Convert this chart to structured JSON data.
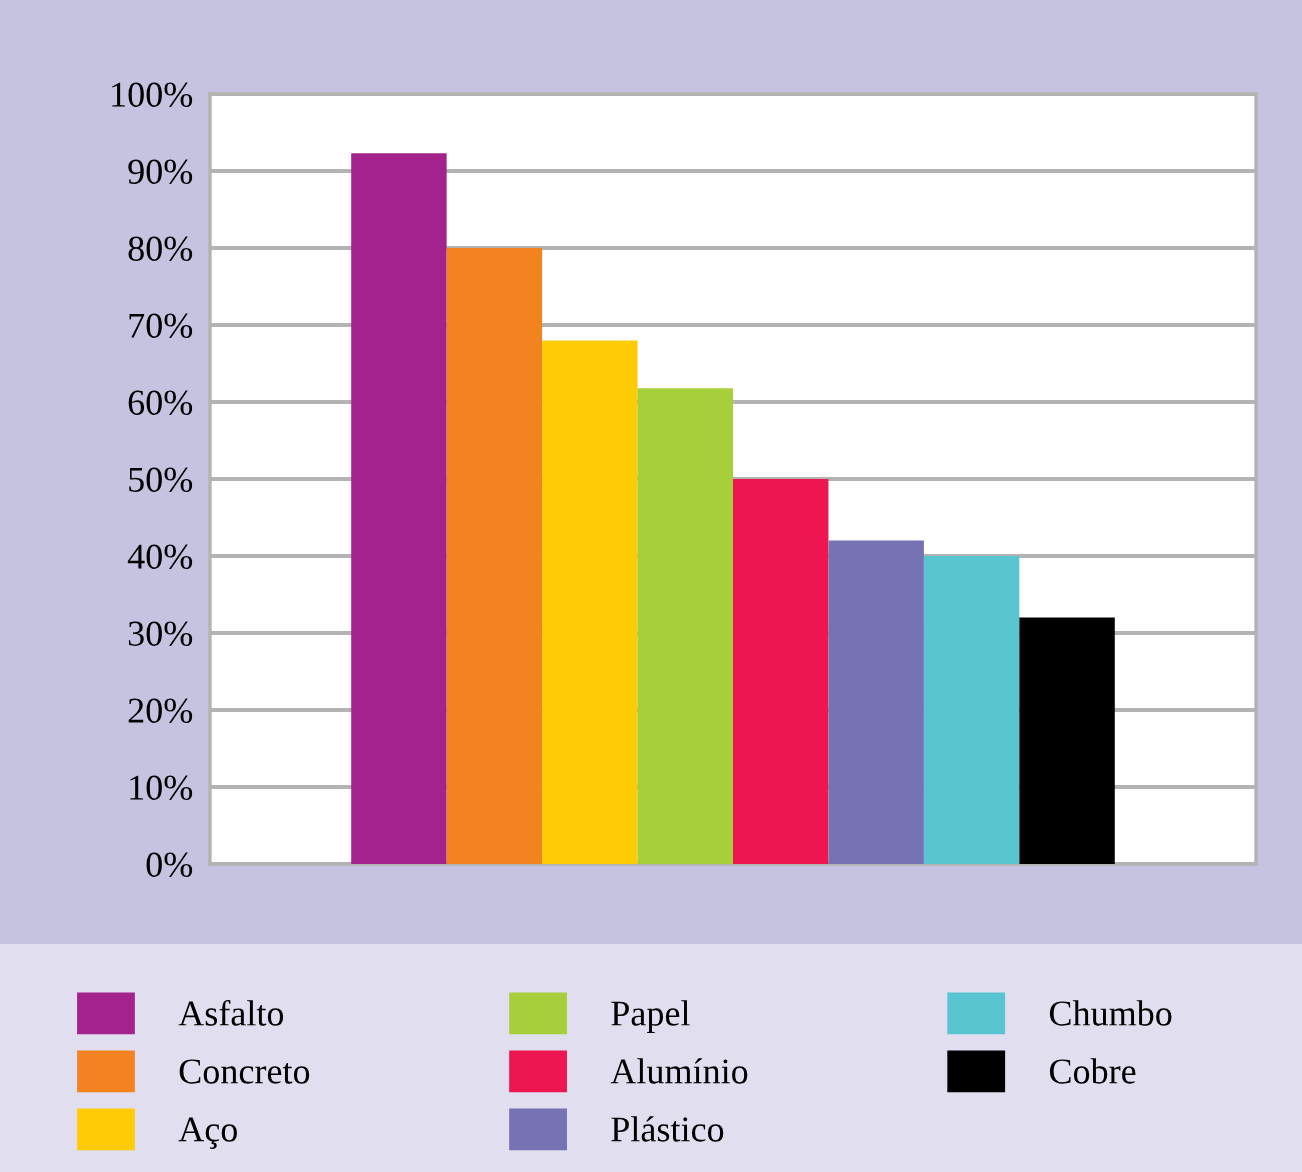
{
  "chart_data": {
    "type": "bar",
    "categories": [
      null
    ],
    "series": [
      {
        "name": "Asfalto",
        "color": "#a3228c",
        "values": [
          92.3
        ]
      },
      {
        "name": "Concreto",
        "color": "#f38220",
        "values": [
          80
        ]
      },
      {
        "name": "Aço",
        "color": "#fecb05",
        "values": [
          68
        ]
      },
      {
        "name": "Papel",
        "color": "#a7cf3b",
        "values": [
          61.8
        ]
      },
      {
        "name": "Alumínio",
        "color": "#ed1651",
        "values": [
          50
        ]
      },
      {
        "name": "Plástico",
        "color": "#7772b3",
        "values": [
          42
        ]
      },
      {
        "name": "Chumbo",
        "color": "#58c5d1",
        "values": [
          40
        ]
      },
      {
        "name": "Cobre",
        "color": "#000000",
        "values": [
          32
        ]
      }
    ],
    "ylim": [
      0,
      100
    ],
    "yticks": [
      {
        "value": 0,
        "label": "0%"
      },
      {
        "value": 10,
        "label": "10%"
      },
      {
        "value": 20,
        "label": "20%"
      },
      {
        "value": 30,
        "label": "30%"
      },
      {
        "value": 40,
        "label": "40%"
      },
      {
        "value": 50,
        "label": "50%"
      },
      {
        "value": 60,
        "label": "60%"
      },
      {
        "value": 70,
        "label": "70%"
      },
      {
        "value": 80,
        "label": "80%"
      },
      {
        "value": 90,
        "label": "90%"
      },
      {
        "value": 100,
        "label": "100%"
      }
    ],
    "grid": "y",
    "legend": "bottom"
  }
}
